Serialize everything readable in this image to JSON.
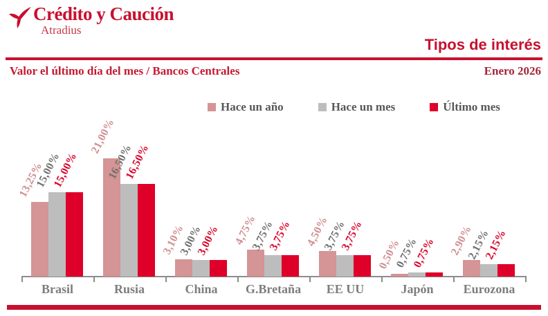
{
  "header": {
    "brand": "Crédito y Caución",
    "brand_sub": "Atradius",
    "title": "Tipos de interés",
    "subtitle": "Valor el último día del mes / Bancos Centrales",
    "period": "Enero 2026"
  },
  "legend": [
    {
      "name": "Hace un año",
      "color": "#d59495"
    },
    {
      "name": "Hace un mes",
      "color": "#bdbdbd"
    },
    {
      "name": "Último mes",
      "color": "#de0029"
    }
  ],
  "chart_data": {
    "type": "bar",
    "title": "Tipos de interés",
    "subtitle": "Valor el último día del mes / Bancos Centrales",
    "period": "Enero 2026",
    "categories": [
      "Brasil",
      "Rusia",
      "China",
      "G.Bretaña",
      "EE UU",
      "Japón",
      "Eurozona"
    ],
    "series": [
      {
        "name": "Hace un año",
        "color": "#d59495",
        "label_color": "#d08f91",
        "values": [
          13.25,
          21.0,
          3.1,
          4.75,
          4.5,
          0.5,
          2.9
        ],
        "labels": [
          "13,25%",
          "21,00%",
          "3,10%",
          "4,75%",
          "4,50%",
          "0,50%",
          "2,90%"
        ]
      },
      {
        "name": "Hace un mes",
        "color": "#bdbdbd",
        "label_color": "#6f6f6f",
        "values": [
          15.0,
          16.5,
          3.0,
          3.75,
          3.75,
          0.75,
          2.15
        ],
        "labels": [
          "15,00%",
          "16,50%",
          "3,00%",
          "3,75%",
          "3,75%",
          "0,75%",
          "2,15%"
        ]
      },
      {
        "name": "Último mes",
        "color": "#de0029",
        "label_color": "#d9042b",
        "values": [
          15.0,
          16.5,
          3.0,
          3.75,
          3.75,
          0.75,
          2.15
        ],
        "labels": [
          "15,00%",
          "16,50%",
          "3,00%",
          "3,75%",
          "3,75%",
          "0,75%",
          "2,15%"
        ]
      }
    ],
    "ylim": [
      0,
      21
    ],
    "unit": "%",
    "grid": false,
    "legend_position": "top",
    "value_labels_rotated": true
  },
  "colors": {
    "brand_red": "#c8102e",
    "period_red": "#a32638",
    "axis_gray": "#8c8c8c",
    "category_gray": "#7d7d7d",
    "legend_text": "#575757",
    "background": "#ffffff"
  }
}
